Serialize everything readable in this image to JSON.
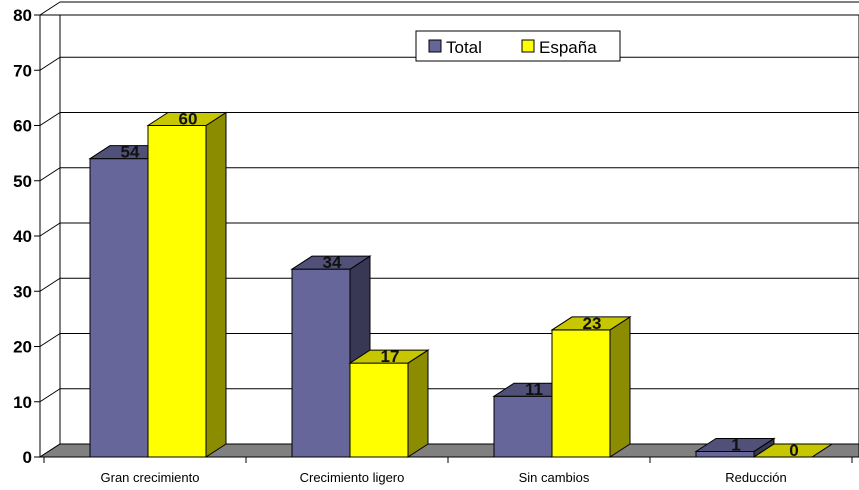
{
  "chart_data": {
    "type": "bar",
    "categories": [
      "Gran crecimiento",
      "Crecimiento ligero",
      "Sin cambios",
      "Reducción"
    ],
    "series": [
      {
        "name": "Total",
        "values": [
          54,
          34,
          11,
          1
        ]
      },
      {
        "name": "España",
        "values": [
          60,
          17,
          23,
          0
        ]
      }
    ],
    "ylim": [
      0,
      80
    ],
    "yticks": [
      0,
      10,
      20,
      30,
      40,
      50,
      60,
      70,
      80
    ],
    "grid": true,
    "legend": "top-right",
    "style": "3d-clustered",
    "colors": {
      "series": [
        "#66669A",
        "#FFFF00"
      ],
      "floor": "#808080",
      "wall": "#FFFFFF"
    }
  }
}
